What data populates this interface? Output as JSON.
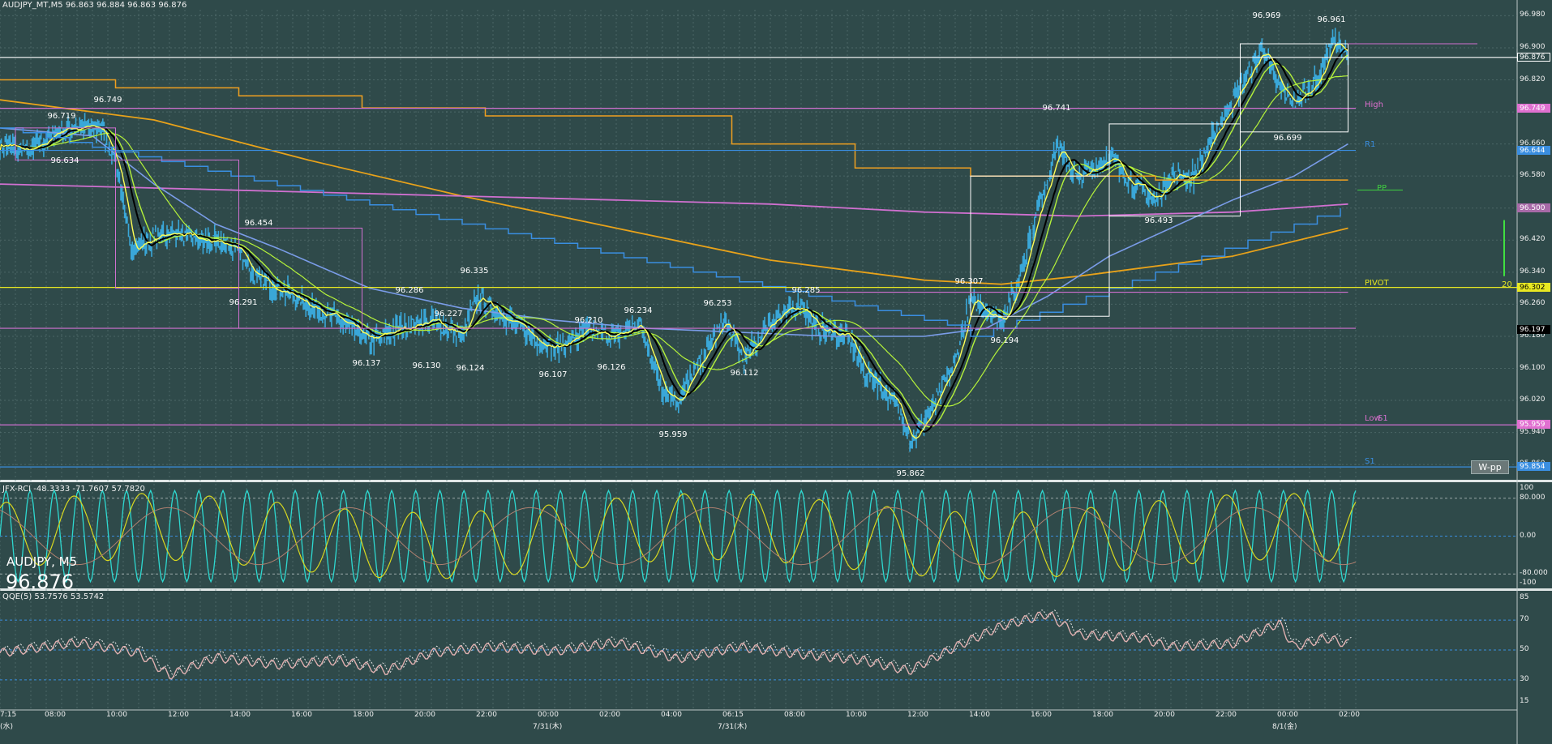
{
  "window": {
    "title": "AUDJPY_MT,M5  96.863 96.884 96.863 96.876",
    "symbol_label": "AUDJPY, M5",
    "current_price": "96.876",
    "wpp_button": "W-pp"
  },
  "colors": {
    "background": "#2f4a4a",
    "grid": "#5f7a7a",
    "candles": "#3aa7d8",
    "ma_fast": "#ffff55",
    "ma_black": "#000000",
    "ma_green": "#b5f23a",
    "ma_blue": "#7a9ce8",
    "ma_orange": "#e8a21a",
    "ma_pink": "#d070d0",
    "step_blue": "#3a8ee0",
    "step_orange": "#f0a020",
    "pivot": "#e8e822",
    "rci_cyan": "#2ed8d0",
    "rci_yellow": "#d8d820",
    "rci_brown": "#b08070",
    "qqe_line": "#e0b0b0",
    "qqe_dotted": "#e8e8e8"
  },
  "price_axis": {
    "ticks": [
      "96.980",
      "96.900",
      "96.820",
      "96.740",
      "96.660",
      "96.580",
      "96.500",
      "96.420",
      "96.340",
      "96.260",
      "96.180",
      "96.100",
      "96.020",
      "95.940",
      "95.860"
    ],
    "tags": [
      {
        "text": "96.876",
        "bg": "#2f4a4a",
        "fg": "#ffffff",
        "border": "#ffffff",
        "price": 96.876
      },
      {
        "text": "96.749",
        "bg": "#e070d0",
        "fg": "#ffffff",
        "border": "#e070d0",
        "price": 96.749
      },
      {
        "text": "96.644",
        "bg": "#3a8ee0",
        "fg": "#ffffff",
        "border": "#3a8ee0",
        "price": 96.644
      },
      {
        "text": "96.500",
        "bg": "#a86aa8",
        "fg": "#ffffff",
        "border": "#a86aa8",
        "price": 96.5
      },
      {
        "text": "96.302",
        "bg": "#e8e822",
        "fg": "#000000",
        "border": "#e8e822",
        "price": 96.302
      },
      {
        "text": "96.197",
        "bg": "#000000",
        "fg": "#ffffff",
        "border": "#000000",
        "price": 96.197
      },
      {
        "text": "95.959",
        "bg": "#e070d0",
        "fg": "#ffffff",
        "border": "#e070d0",
        "price": 95.959
      },
      {
        "text": "95.854",
        "bg": "#3a8ee0",
        "fg": "#ffffff",
        "border": "#3a8ee0",
        "price": 95.854
      }
    ]
  },
  "level_labels": [
    {
      "text": "High",
      "color": "#e070d0",
      "price": 96.755
    },
    {
      "text": "R1",
      "color": "#3a8ee0",
      "price": 96.655
    },
    {
      "text": "PP",
      "color": "#40d040",
      "price": 96.545
    },
    {
      "text": "PIVOT",
      "color": "#e8e822",
      "price": 96.31
    },
    {
      "text": "Low",
      "color": "#e070d0",
      "price": 95.972
    },
    {
      "text": "S1",
      "color": "#d070d0",
      "price": 95.972
    },
    {
      "text": "S1",
      "color": "#3a8ee0",
      "price": 95.865
    },
    {
      "text": "20",
      "color": "#e8e822",
      "price": 96.305
    }
  ],
  "peak_labels": [
    {
      "text": "96.719",
      "t": 4,
      "price": 96.728
    },
    {
      "text": "96.749",
      "t": 7,
      "price": 96.768
    },
    {
      "text": "96.634",
      "t": 4.2,
      "price": 96.616
    },
    {
      "text": "96.454",
      "t": 16.8,
      "price": 96.462
    },
    {
      "text": "96.291",
      "t": 15.8,
      "price": 96.262
    },
    {
      "text": "96.137",
      "t": 23.8,
      "price": 96.112
    },
    {
      "text": "96.286",
      "t": 26.6,
      "price": 96.293
    },
    {
      "text": "96.227",
      "t": 29.1,
      "price": 96.235
    },
    {
      "text": "96.130",
      "t": 27.7,
      "price": 96.106
    },
    {
      "text": "96.335",
      "t": 30.8,
      "price": 96.342
    },
    {
      "text": "96.124",
      "t": 30.5,
      "price": 96.099
    },
    {
      "text": "96.210",
      "t": 38.2,
      "price": 96.218
    },
    {
      "text": "96.107",
      "t": 35.9,
      "price": 96.082
    },
    {
      "text": "96.234",
      "t": 41.4,
      "price": 96.242
    },
    {
      "text": "96.126",
      "t": 39.7,
      "price": 96.101
    },
    {
      "text": "95.959",
      "t": 43.7,
      "price": 95.933
    },
    {
      "text": "96.253",
      "t": 46.6,
      "price": 96.261
    },
    {
      "text": "96.112",
      "t": 48.3,
      "price": 96.087
    },
    {
      "text": "96.285",
      "t": 52.3,
      "price": 96.293
    },
    {
      "text": "95.862",
      "t": 59.1,
      "price": 95.836
    },
    {
      "text": "96.307",
      "t": 62.9,
      "price": 96.315
    },
    {
      "text": "96.194",
      "t": 65.2,
      "price": 96.168
    },
    {
      "text": "96.741",
      "t": 68.6,
      "price": 96.749
    },
    {
      "text": "96.493",
      "t": 75.2,
      "price": 96.467
    },
    {
      "text": "96.969",
      "t": 82.2,
      "price": 96.978
    },
    {
      "text": "96.699",
      "t": 83.6,
      "price": 96.673
    },
    {
      "text": "96.961",
      "t": 86.4,
      "price": 96.969
    }
  ],
  "rci_panel": {
    "title": "JFX-RCI -48.3333 -71.7607 57.7820",
    "axis": [
      "100",
      "80.000",
      "0.00",
      "-80.000",
      "-100"
    ]
  },
  "qqe_panel": {
    "title": "QQE(5) 53.7576 53.5742",
    "axis": [
      "85",
      "70",
      "50",
      "30",
      "15"
    ]
  },
  "time_axis": {
    "labels": [
      {
        "text": "7:15",
        "sub": "(水)",
        "t": 0
      },
      {
        "text": "08:00",
        "t": 3.5
      },
      {
        "text": "10:00",
        "t": 7.5
      },
      {
        "text": "12:00",
        "t": 11.5
      },
      {
        "text": "14:00",
        "t": 15.5
      },
      {
        "text": "16:00",
        "t": 19.5
      },
      {
        "text": "18:00",
        "t": 23.5
      },
      {
        "text": "20:00",
        "t": 27.5
      },
      {
        "text": "22:00",
        "t": 31.5
      },
      {
        "text": "00:00",
        "sub": "7/31(木)",
        "t": 35.5
      },
      {
        "text": "02:00",
        "t": 39.5
      },
      {
        "text": "04:00",
        "t": 43.5
      },
      {
        "text": "06:15",
        "sub": "7/31(木)",
        "t": 47.5
      },
      {
        "text": "08:00",
        "t": 51.5
      },
      {
        "text": "10:00",
        "t": 55.5
      },
      {
        "text": "12:00",
        "t": 59.5
      },
      {
        "text": "14:00",
        "t": 63.5
      },
      {
        "text": "16:00",
        "t": 67.5
      },
      {
        "text": "18:00",
        "t": 71.5
      },
      {
        "text": "20:00",
        "t": 75.5
      },
      {
        "text": "22:00",
        "t": 79.5
      },
      {
        "text": "00:00",
        "sub": "8/1(金)",
        "t": 83.5
      },
      {
        "text": "02:00",
        "t": 87.5
      }
    ]
  }
}
